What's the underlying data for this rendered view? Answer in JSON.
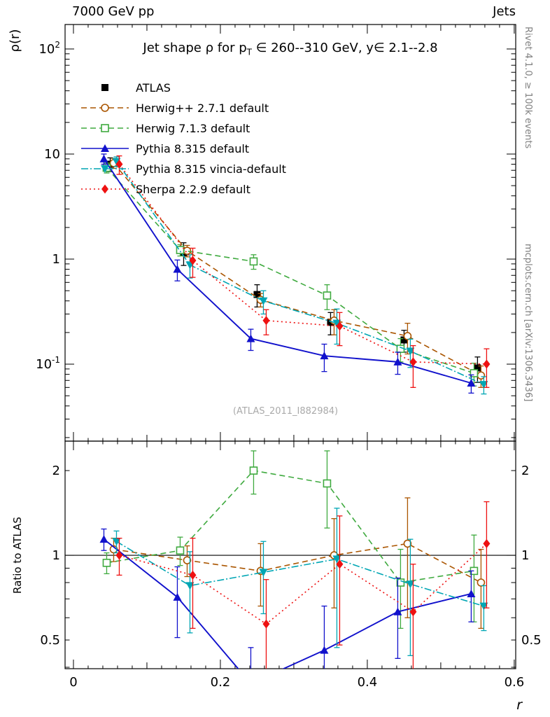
{
  "page": {
    "header_left": "7000 GeV pp",
    "header_right": "Jets",
    "right_note_top": "Rivet 4.1.0, ≥ 100k events",
    "right_note_bottom": "mcplots.cern.ch [arXiv:1306.3436]",
    "watermark": "(ATLAS_2011_I882984)",
    "xlabel": "r",
    "ylabel_top": "ρ(r)",
    "ylabel_bottom": "Ratio to ATLAS",
    "title": {
      "p1": "Jet shape ρ for p",
      "sub": "T",
      "p2": " ∈ 260--310 GeV, y∈ 2.1--2.8"
    }
  },
  "chart_data": {
    "type": "line",
    "title": "Jet shape ρ for p_T ∈ 260--310 GeV, y ∈ 2.1--2.8",
    "xlabel": "r",
    "ylabel": "ρ(r)",
    "ratio_label": "Ratio to ATLAS",
    "legend_position": "top-left inside",
    "grid": false,
    "x": [
      0.05,
      0.15,
      0.25,
      0.35,
      0.45,
      0.55
    ],
    "xlim": [
      -0.0114,
      0.602
    ],
    "xticks": [
      {
        "value": 0,
        "label": "0"
      },
      {
        "value": 0.2,
        "label": "0.2"
      },
      {
        "value": 0.4,
        "label": "0.4"
      },
      {
        "value": 0.6,
        "label": "0.6"
      }
    ],
    "x_minor_step": 0.02,
    "x_medium_step": 0.1,
    "top_panel": {
      "ylog": true,
      "ylim": [
        0.0185,
        171
      ],
      "yticks": [
        {
          "value": 100,
          "main": "10",
          "sup": "2"
        },
        {
          "value": 10,
          "main": "10",
          "sup": ""
        },
        {
          "value": 1,
          "main": "1",
          "sup": ""
        },
        {
          "value": 0.1,
          "main": "10",
          "sup": "-1"
        }
      ]
    },
    "ratio_panel": {
      "ylog": true,
      "ylim": [
        0.3954,
        2.545
      ],
      "reference": 1,
      "yticks": [
        {
          "value": 2,
          "label": "2"
        },
        {
          "value": 1,
          "label": "1"
        },
        {
          "value": 0.5,
          "label": "0.5"
        }
      ]
    },
    "series": [
      {
        "name": "atlas",
        "label": "ATLAS",
        "color": "#000000",
        "marker": "square-filled",
        "line": "none",
        "dash": "",
        "values": [
          8.0,
          1.15,
          0.46,
          0.25,
          0.17,
          0.092
        ],
        "errors": [
          1.2,
          0.28,
          0.11,
          0.06,
          0.04,
          0.025
        ],
        "ratio": null,
        "ratio_errors": null,
        "is_reference": true
      },
      {
        "name": "herwigpp-271",
        "label": "Herwig++ 2.7.1 default",
        "color": "#aa5500",
        "marker": "circle-open",
        "line": "dashed",
        "dash": "8,5",
        "values": [
          8.2,
          1.2,
          0.41,
          0.26,
          0.185,
          0.078
        ],
        "errors": [
          0.9,
          0.15,
          0.06,
          0.07,
          0.06,
          0.018
        ],
        "ratio": [
          1.05,
          0.96,
          0.88,
          1.0,
          1.1,
          0.8
        ],
        "ratio_errors": [
          0.1,
          0.12,
          0.22,
          0.35,
          0.5,
          0.25
        ],
        "is_reference": false
      },
      {
        "name": "herwig-713",
        "label": "Herwig 7.1.3 default",
        "color": "#3faa3f",
        "marker": "square-open",
        "line": "dashed",
        "dash": "8,5",
        "values": [
          7.4,
          1.22,
          0.95,
          0.45,
          0.14,
          0.082
        ],
        "errors": [
          0.8,
          0.15,
          0.15,
          0.12,
          0.035,
          0.02
        ],
        "ratio": [
          0.94,
          1.04,
          2.0,
          1.8,
          0.8,
          0.88
        ],
        "ratio_errors": [
          0.08,
          0.12,
          0.35,
          0.55,
          0.25,
          0.3
        ],
        "is_reference": false
      },
      {
        "name": "pythia-8315",
        "label": "Pythia 8.315 default",
        "color": "#1111cc",
        "marker": "triangle-up-filled",
        "line": "solid",
        "dash": "",
        "values": [
          9.0,
          0.8,
          0.175,
          0.12,
          0.105,
          0.066
        ],
        "errors": [
          1.0,
          0.18,
          0.04,
          0.035,
          0.025,
          0.013
        ],
        "ratio": [
          1.14,
          0.71,
          0.35,
          0.46,
          0.63,
          0.73
        ],
        "ratio_errors": [
          0.1,
          0.2,
          0.12,
          0.2,
          0.2,
          0.15
        ],
        "is_reference": false
      },
      {
        "name": "pythia-8315-vincia",
        "label": "Pythia 8.315 vincia-default",
        "color": "#00a6b4",
        "marker": "triangle-down-filled",
        "line": "dashdot",
        "dash": "10,3,2,3",
        "values": [
          8.5,
          0.88,
          0.4,
          0.245,
          0.133,
          0.064
        ],
        "errors": [
          0.9,
          0.22,
          0.1,
          0.09,
          0.04,
          0.012
        ],
        "ratio": [
          1.12,
          0.78,
          0.87,
          0.97,
          0.79,
          0.66
        ],
        "ratio_errors": [
          0.1,
          0.25,
          0.25,
          0.5,
          0.35,
          0.12
        ],
        "is_reference": false
      },
      {
        "name": "sherpa-229",
        "label": "Sherpa 2.2.9 default",
        "color": "#ee1111",
        "marker": "diamond-filled",
        "line": "dotted",
        "dash": "2,4",
        "values": [
          8.0,
          0.97,
          0.26,
          0.23,
          0.105,
          0.1
        ],
        "errors": [
          1.6,
          0.3,
          0.07,
          0.08,
          0.045,
          0.04
        ],
        "ratio": [
          1.0,
          0.85,
          0.57,
          0.93,
          0.63,
          1.1
        ],
        "ratio_errors": [
          0.15,
          0.3,
          0.25,
          0.45,
          0.3,
          0.45
        ],
        "is_reference": false
      }
    ]
  }
}
